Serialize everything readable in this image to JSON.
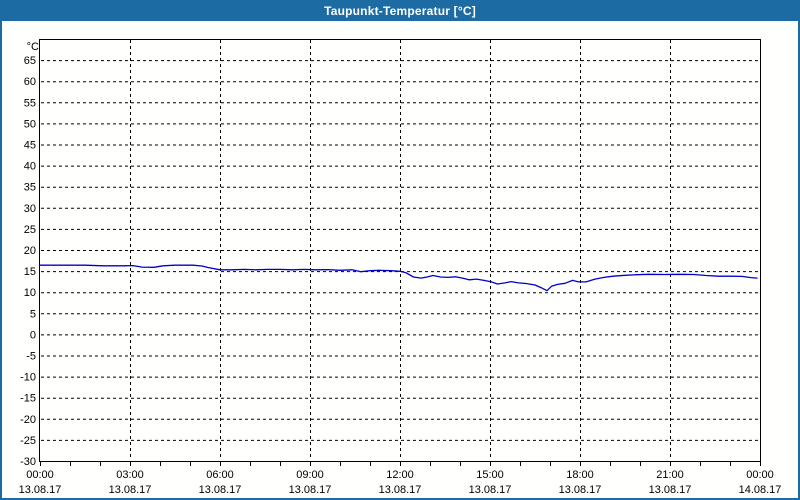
{
  "window": {
    "title": "Taupunkt-Temperatur [°C]"
  },
  "colors": {
    "frame": "#1d6ba3",
    "titlebar_bg": "#1d6ba3",
    "title_text": "#ffffff",
    "plot_bg": "#fffffd",
    "grid": "#000000",
    "axis": "#000000",
    "label_text": "#000000",
    "line": "#0000c8"
  },
  "chart_data": {
    "type": "line",
    "title": "Taupunkt-Temperatur [°C]",
    "y_unit_label": "°C",
    "ylabel": "",
    "xlabel": "",
    "ylim": [
      -30,
      70
    ],
    "y_tick_step": 5,
    "y_ticks": [
      65,
      60,
      55,
      50,
      45,
      40,
      35,
      30,
      25,
      20,
      15,
      10,
      5,
      0,
      -5,
      -10,
      -15,
      -20,
      -25,
      -30
    ],
    "grid": "dashed",
    "legend_position": "none",
    "x_axis": {
      "xlim_hours": [
        0,
        24
      ],
      "minor_tick_every_hours": 1,
      "major_ticks": [
        {
          "hour": 0,
          "time": "00:00",
          "date": "13.08.17"
        },
        {
          "hour": 3,
          "time": "03:00",
          "date": "13.08.17"
        },
        {
          "hour": 6,
          "time": "06:00",
          "date": "13.08.17"
        },
        {
          "hour": 9,
          "time": "09:00",
          "date": "13.08.17"
        },
        {
          "hour": 12,
          "time": "12:00",
          "date": "13.08.17"
        },
        {
          "hour": 15,
          "time": "15:00",
          "date": "13.08.17"
        },
        {
          "hour": 18,
          "time": "18:00",
          "date": "13.08.17"
        },
        {
          "hour": 21,
          "time": "21:00",
          "date": "13.08.17"
        },
        {
          "hour": 24,
          "time": "00:00",
          "date": "14.08.17"
        }
      ]
    },
    "series": [
      {
        "name": "Taupunkt-Temperatur",
        "color": "#0000c8",
        "points_hour_degC": [
          [
            0.0,
            16.4
          ],
          [
            0.7,
            16.4
          ],
          [
            1.5,
            16.4
          ],
          [
            2.1,
            16.25
          ],
          [
            2.8,
            16.25
          ],
          [
            3.1,
            16.3
          ],
          [
            3.4,
            15.95
          ],
          [
            3.8,
            15.9
          ],
          [
            4.1,
            16.25
          ],
          [
            4.5,
            16.4
          ],
          [
            5.1,
            16.4
          ],
          [
            5.4,
            16.2
          ],
          [
            5.6,
            15.85
          ],
          [
            6.0,
            15.3
          ],
          [
            6.4,
            15.3
          ],
          [
            6.8,
            15.4
          ],
          [
            7.2,
            15.3
          ],
          [
            7.6,
            15.4
          ],
          [
            8.0,
            15.4
          ],
          [
            8.4,
            15.3
          ],
          [
            8.8,
            15.4
          ],
          [
            9.2,
            15.3
          ],
          [
            9.6,
            15.35
          ],
          [
            10.0,
            15.2
          ],
          [
            10.4,
            15.3
          ],
          [
            10.7,
            14.85
          ],
          [
            11.0,
            15.1
          ],
          [
            11.3,
            15.2
          ],
          [
            11.7,
            15.1
          ],
          [
            12.0,
            14.95
          ],
          [
            12.2,
            14.6
          ],
          [
            12.45,
            13.6
          ],
          [
            12.7,
            13.35
          ],
          [
            12.9,
            13.6
          ],
          [
            13.1,
            13.95
          ],
          [
            13.35,
            13.6
          ],
          [
            13.6,
            13.5
          ],
          [
            13.85,
            13.65
          ],
          [
            14.1,
            13.3
          ],
          [
            14.3,
            12.95
          ],
          [
            14.55,
            13.1
          ],
          [
            14.8,
            12.8
          ],
          [
            15.05,
            12.45
          ],
          [
            15.25,
            11.95
          ],
          [
            15.5,
            12.2
          ],
          [
            15.7,
            12.5
          ],
          [
            15.95,
            12.2
          ],
          [
            16.2,
            12.05
          ],
          [
            16.5,
            11.7
          ],
          [
            16.7,
            11.1
          ],
          [
            16.9,
            10.35
          ],
          [
            17.05,
            11.4
          ],
          [
            17.25,
            11.85
          ],
          [
            17.5,
            12.1
          ],
          [
            17.75,
            12.8
          ],
          [
            17.95,
            12.45
          ],
          [
            18.2,
            12.45
          ],
          [
            18.5,
            13.1
          ],
          [
            18.8,
            13.5
          ],
          [
            19.1,
            13.8
          ],
          [
            19.5,
            14.0
          ],
          [
            19.9,
            14.15
          ],
          [
            20.3,
            14.25
          ],
          [
            20.8,
            14.2
          ],
          [
            21.3,
            14.25
          ],
          [
            21.8,
            14.2
          ],
          [
            22.2,
            13.95
          ],
          [
            22.6,
            13.8
          ],
          [
            23.0,
            13.8
          ],
          [
            23.4,
            13.75
          ],
          [
            23.7,
            13.45
          ],
          [
            23.9,
            13.35
          ]
        ]
      }
    ]
  }
}
